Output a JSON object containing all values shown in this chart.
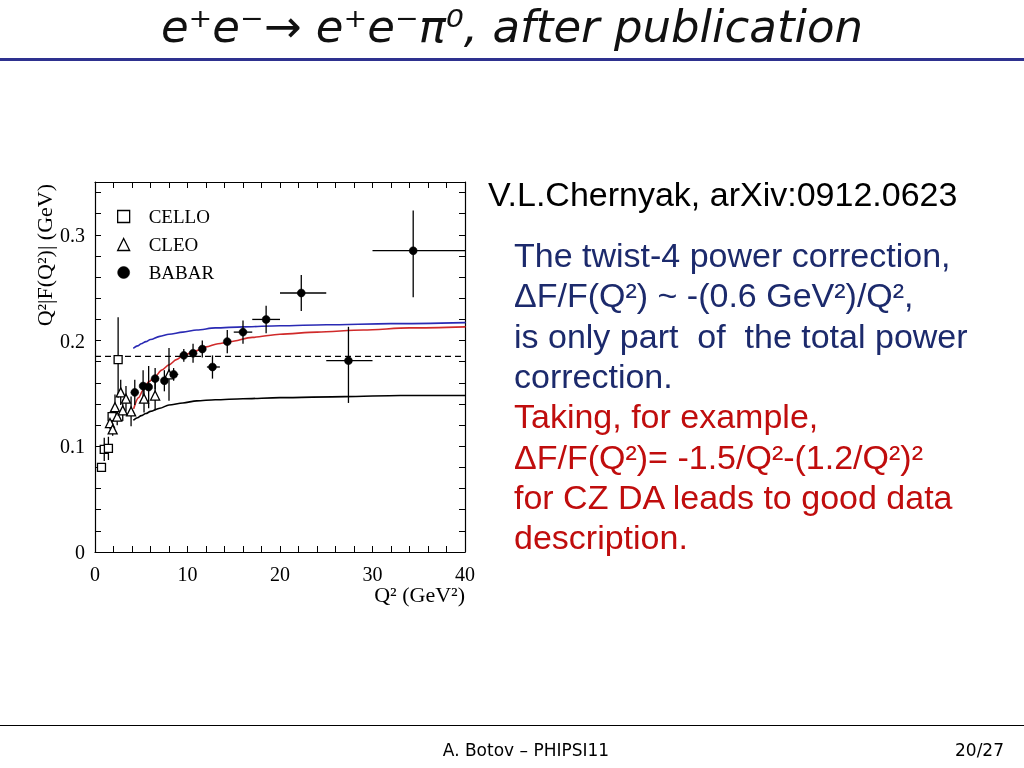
{
  "chart_data": {
    "type": "scatter",
    "title": "e⁺e⁻→ e⁺e⁻π⁰, after publication",
    "xlabel": "Q² (GeV²)",
    "ylabel": "Q²|F(Q²)| (GeV)",
    "xlim": [
      0,
      40
    ],
    "xticks": [
      0,
      {
        "value": 2,
        "label": null
      },
      {
        "value": 4,
        "label": null
      },
      {
        "value": 6,
        "label": null
      },
      {
        "value": 8,
        "label": null
      },
      10,
      {
        "value": 12,
        "label": null
      },
      {
        "value": 14,
        "label": null
      },
      {
        "value": 16,
        "label": null
      },
      {
        "value": 18,
        "label": null
      },
      20,
      {
        "value": 22,
        "label": null
      },
      {
        "value": 24,
        "label": null
      },
      {
        "value": 26,
        "label": null
      },
      {
        "value": 28,
        "label": null
      },
      30,
      {
        "value": 32,
        "label": null
      },
      {
        "value": 34,
        "label": null
      },
      {
        "value": 36,
        "label": null
      },
      {
        "value": 38,
        "label": null
      },
      40
    ],
    "ylim": [
      0,
      0.35
    ],
    "yticks": [
      0,
      {
        "value": 0.02,
        "label": null
      },
      {
        "value": 0.04,
        "label": null
      },
      {
        "value": 0.06,
        "label": null
      },
      {
        "value": 0.08,
        "label": null
      },
      0.1,
      {
        "value": 0.12,
        "label": null
      },
      {
        "value": 0.14,
        "label": null
      },
      {
        "value": 0.16,
        "label": null
      },
      {
        "value": 0.18,
        "label": null
      },
      0.2,
      {
        "value": 0.22,
        "label": null
      },
      {
        "value": 0.24,
        "label": null
      },
      {
        "value": 0.26,
        "label": null
      },
      {
        "value": 0.28,
        "label": null
      },
      0.3,
      {
        "value": 0.32,
        "label": null
      },
      {
        "value": 0.34,
        "label": null
      }
    ],
    "legend": "top left",
    "ref_lines": [
      {
        "axis": "y",
        "value": 0.185,
        "color": "#000000",
        "line_style": "dashed"
      }
    ],
    "series": [
      {
        "type": "line",
        "marker": "none",
        "color": "#2a2ab4",
        "x": [
          4.2,
          4.6,
          5,
          5.5,
          6,
          7,
          8,
          9.5,
          11,
          13,
          16,
          20,
          25,
          32,
          40
        ],
        "values": [
          0.193,
          0.195,
          0.197,
          0.199,
          0.201,
          0.204,
          0.206,
          0.208,
          0.21,
          0.212,
          0.213,
          0.214,
          0.215,
          0.216,
          0.217
        ]
      },
      {
        "type": "line",
        "marker": "none",
        "color": "#d02a2a",
        "x": [
          4.2,
          4.7,
          5.2,
          5.8,
          6.5,
          7.2,
          8,
          8.8,
          9.6,
          10.8,
          12,
          13.3,
          14.6,
          17,
          20,
          24,
          29,
          34,
          40
        ],
        "values": [
          0.136,
          0.146,
          0.153,
          0.161,
          0.166,
          0.172,
          0.177,
          0.182,
          0.186,
          0.19,
          0.194,
          0.197,
          0.199,
          0.203,
          0.206,
          0.208,
          0.21,
          0.212,
          0.213
        ]
      },
      {
        "type": "line",
        "marker": "none",
        "color": "#000000",
        "x": [
          4.2,
          4.6,
          5,
          5.5,
          6,
          7,
          8,
          9.5,
          11,
          13,
          16,
          20,
          27,
          33,
          40
        ],
        "values": [
          0.125,
          0.127,
          0.129,
          0.131,
          0.133,
          0.136,
          0.139,
          0.141,
          0.143,
          0.144,
          0.145,
          0.146,
          0.147,
          0.148,
          0.148
        ]
      },
      {
        "name": "CELLO",
        "marker": "square",
        "color": "#000000",
        "x": [
          0.7,
          1.0,
          1.45,
          1.85,
          2.5
        ],
        "values": [
          0.08,
          0.097,
          0.098,
          0.128,
          0.182
        ],
        "errors": [
          0.004,
          0.011,
          0.011,
          0.006,
          [
            0.146,
            0.222
          ]
        ]
      },
      {
        "name": "CLEO",
        "marker": "triangle",
        "color": "#000000",
        "x": [
          1.62,
          1.91,
          2.16,
          2.4,
          2.78,
          3.0,
          3.35,
          3.9,
          5.3,
          6.5,
          8.0
        ],
        "values": [
          0.122,
          0.116,
          0.137,
          0.128,
          0.151,
          0.134,
          0.145,
          0.133,
          0.145,
          0.148,
          0.168
        ],
        "errors": [
          0.006,
          0.006,
          0.012,
          0.008,
          0.012,
          0.01,
          0.012,
          0.014,
          0.013,
          0.014,
          0.025
        ]
      },
      {
        "name": "BABAR",
        "marker": "circle",
        "color": "#000000",
        "x": [
          4.3,
          5.2,
          5.8,
          6.5,
          7.5,
          8.5,
          9.6,
          10.6,
          11.6,
          12.7,
          14.3,
          16.0,
          18.5,
          22.3,
          27.4,
          34.4
        ],
        "values": [
          0.151,
          0.157,
          0.156,
          0.164,
          0.162,
          0.168,
          0.186,
          0.188,
          0.192,
          0.175,
          0.199,
          0.208,
          0.22,
          0.245,
          0.181,
          0.285
        ],
        "errors": [
          0.012,
          0.015,
          0.02,
          0.01,
          0.01,
          0.006,
          0.006,
          0.009,
          0.008,
          0.011,
          0.011,
          0.011,
          0.013,
          0.017,
          [
            0.141,
            0.213
          ],
          [
            0.241,
            0.323
          ]
        ],
        "xerrors": [
          null,
          null,
          null,
          null,
          null,
          [
            8,
            9
          ],
          null,
          null,
          null,
          [
            12.1,
            13.5
          ],
          null,
          [
            15,
            17
          ],
          [
            17,
            20
          ],
          [
            20,
            25
          ],
          [
            25,
            30
          ],
          [
            30,
            40
          ]
        ]
      }
    ],
    "annotations": [
      "V.L.Chernyak, arXiv:0912.0623",
      "The twist-4 power correction,",
      "ΔF/F(Q²) ~ -(0.6 GeV²)/Q²,",
      "is only part  of  the total power",
      "correction.",
      "Taking, for example,",
      "ΔF/F(Q²)= -1.5/Q²-(1.2/Q²)²",
      "for CZ DA leads to good data",
      "description.",
      "A. Botov – PHIPSI11",
      "20/27"
    ]
  }
}
